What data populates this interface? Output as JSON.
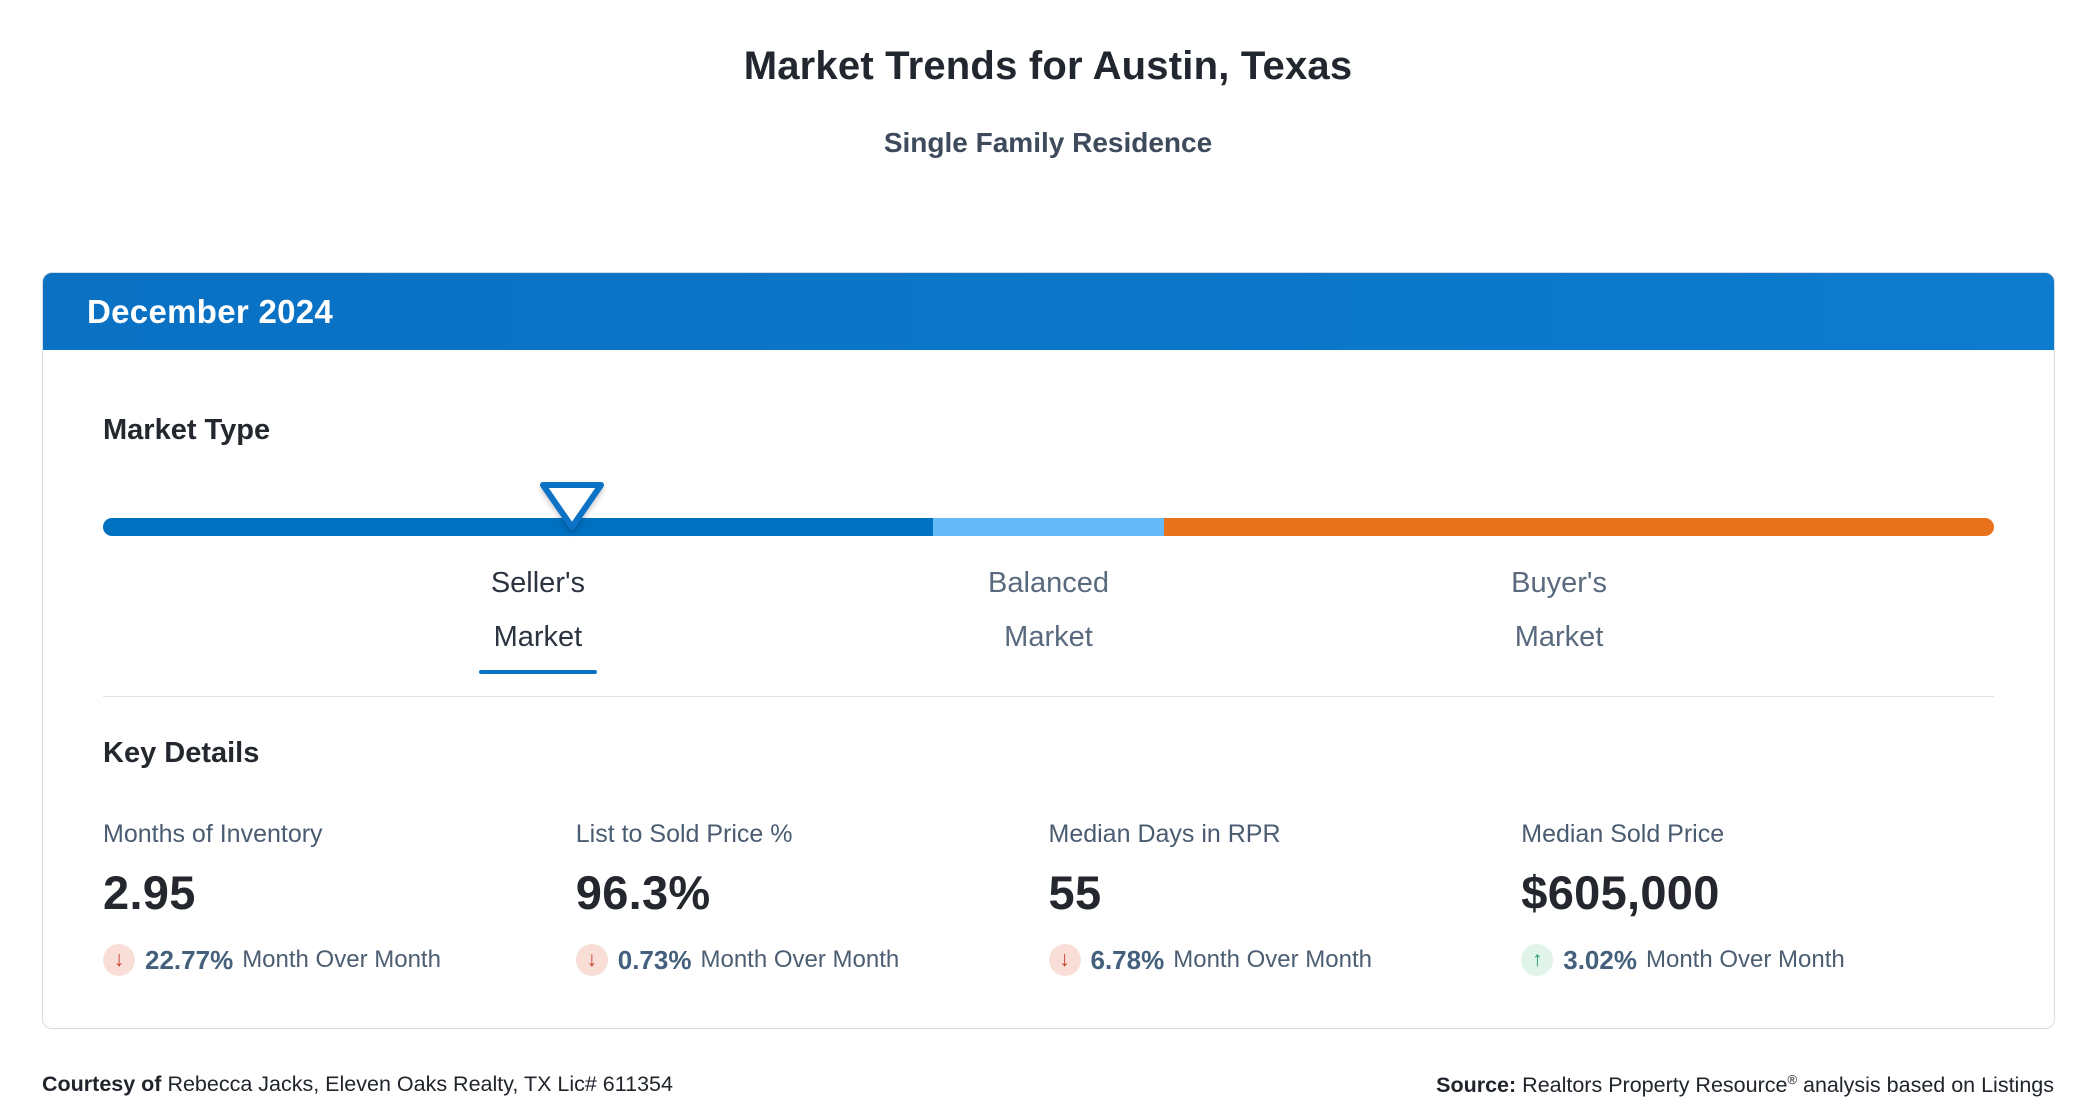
{
  "page": {
    "title": "Market Trends for Austin, Texas",
    "subtitle": "Single Family Residence"
  },
  "card": {
    "period": "December 2024",
    "market_type": {
      "heading": "Market Type",
      "selected_market": "Seller's Market",
      "indicator_position_pct": 24.8,
      "segments": [
        {
          "name": "Seller's Market",
          "color": "#0071c1",
          "width_pct": 43.9
        },
        {
          "name": "Balanced Market",
          "color": "#64bbf7",
          "width_pct": 12.2
        },
        {
          "name": "Buyer's Market",
          "color": "#e9721c",
          "width_pct": 43.9
        }
      ],
      "labels": [
        {
          "line1": "Seller's",
          "line2": "Market",
          "position_pct": 23,
          "active": true
        },
        {
          "line1": "Balanced",
          "line2": "Market",
          "position_pct": 50,
          "active": false
        },
        {
          "line1": "Buyer's",
          "line2": "Market",
          "position_pct": 77,
          "active": false
        }
      ]
    },
    "key_details": {
      "heading": "Key Details",
      "metrics": [
        {
          "label": "Months of Inventory",
          "value": "2.95",
          "arrow": "↓",
          "direction": "down",
          "change_pct": "22.77%",
          "period": "Month Over Month"
        },
        {
          "label": "List to Sold Price %",
          "value": "96.3%",
          "arrow": "↓",
          "direction": "down",
          "change_pct": "0.73%",
          "period": "Month Over Month"
        },
        {
          "label": "Median Days in RPR",
          "value": "55",
          "arrow": "↓",
          "direction": "down",
          "change_pct": "6.78%",
          "period": "Month Over Month"
        },
        {
          "label": "Median Sold Price",
          "value": "$605,000",
          "arrow": "↑",
          "direction": "up",
          "change_pct": "3.02%",
          "period": "Month Over Month"
        }
      ]
    }
  },
  "footer": {
    "courtesy_label": "Courtesy of",
    "courtesy_text": " Rebecca Jacks, Eleven Oaks Realty, TX Lic# 611354",
    "source_label": "Source:",
    "source_name": " Realtors Property Resource",
    "source_reg_mark": "®",
    "source_suffix": " analysis based on Listings"
  },
  "colors": {
    "header_blue": "#0b76c8",
    "seller_blue": "#0071c1",
    "balanced_light_blue": "#64bbf7",
    "buyer_orange": "#e9721c",
    "active_underline_blue": "#0b72c6",
    "down_red": "#c43d2b",
    "down_red_bg": "#f9ded8",
    "up_green": "#259d63",
    "up_green_bg": "#e1f4ea"
  }
}
